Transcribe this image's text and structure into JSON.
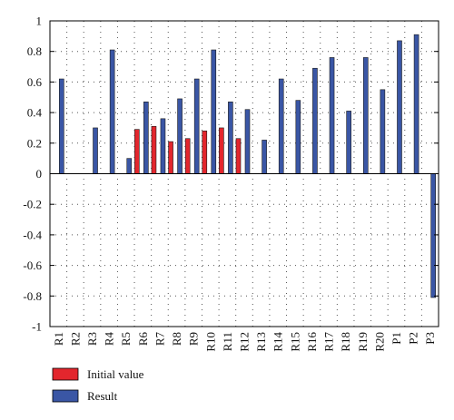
{
  "chart_data": {
    "type": "bar",
    "categories": [
      "R1",
      "R2",
      "R3",
      "R4",
      "R5",
      "R6",
      "R7",
      "R8",
      "R9",
      "R10",
      "R11",
      "R12",
      "R13",
      "R14",
      "R15",
      "R16",
      "R17",
      "R18",
      "R19",
      "R20",
      "P1",
      "P2",
      "P3"
    ],
    "series": [
      {
        "name": "Initial value",
        "color": "#e3262d",
        "values": [
          null,
          null,
          null,
          null,
          null,
          0.29,
          0.31,
          0.21,
          0.23,
          0.28,
          0.3,
          0.23,
          null,
          null,
          null,
          null,
          null,
          null,
          null,
          null,
          null,
          null,
          null
        ]
      },
      {
        "name": "Result",
        "color": "#3a56a5",
        "values": [
          0.62,
          null,
          0.3,
          0.81,
          0.1,
          0.47,
          0.36,
          0.49,
          0.62,
          0.81,
          0.47,
          0.42,
          0.22,
          0.62,
          0.48,
          0.69,
          0.76,
          0.41,
          0.76,
          0.55,
          0.87,
          0.91,
          -0.81
        ]
      }
    ],
    "yticks": [
      "1",
      "0.8",
      "0.6",
      "0.4",
      "0.2",
      "0",
      "-0.2",
      "-0.4",
      "-0.6",
      "-0.8",
      "-1"
    ],
    "ylim": [
      -1,
      1
    ],
    "grid": "dotted",
    "legend_position": "bottom-left"
  }
}
